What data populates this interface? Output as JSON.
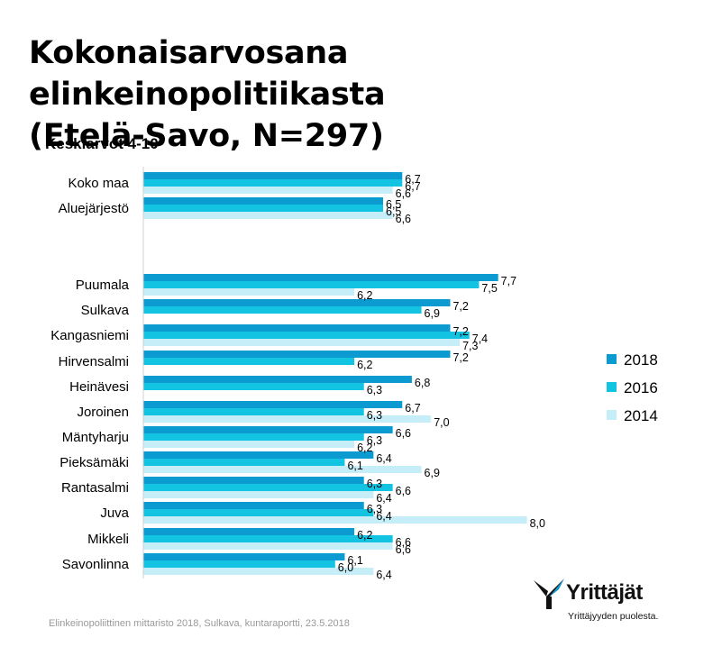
{
  "title_line1": "Kokonaisarvosana elinkeinopolitiikasta",
  "title_line2": "(Etelä-Savo, N=297)",
  "subtitle": "Keskiarvot 4-10",
  "footer": "Elinkeinopoliittinen mittaristo 2018, Sulkava, kuntaraportti, 23.5.2018",
  "logo": {
    "name": "Yrittäjät",
    "slogan": "Yrittäjyyden puolesta."
  },
  "colors": {
    "s2018": "#0b9bd1",
    "s2016": "#13c4e2",
    "s2014": "#c5eef8",
    "axis": "#d0d0d0"
  },
  "chart_data": {
    "type": "bar",
    "orientation": "horizontal",
    "title": "Kokonaisarvosana elinkeinopolitiikasta (Etelä-Savo, N=297)",
    "subtitle": "Keskiarvot 4-10",
    "legend_position": "right",
    "grid": false,
    "xlim": [
      4,
      10
    ],
    "categories": [
      "Koko maa",
      "Aluejärjestö",
      "Puumala",
      "Sulkava",
      "Kangasniemi",
      "Hirvensalmi",
      "Heinävesi",
      "Joroinen",
      "Mäntyharju",
      "Pieksämäki",
      "Rantasalmi",
      "Juva",
      "Mikkeli",
      "Savonlinna"
    ],
    "series": [
      {
        "name": "2018",
        "values": [
          6.7,
          6.5,
          7.7,
          7.2,
          7.2,
          7.2,
          6.8,
          6.7,
          6.6,
          6.4,
          6.3,
          6.3,
          6.2,
          6.1
        ]
      },
      {
        "name": "2016",
        "values": [
          6.7,
          6.5,
          7.5,
          6.9,
          7.4,
          6.2,
          6.3,
          6.3,
          6.3,
          6.1,
          6.6,
          6.4,
          6.6,
          6.0
        ]
      },
      {
        "name": "2014",
        "values": [
          6.6,
          6.6,
          6.2,
          null,
          7.3,
          null,
          null,
          7.0,
          6.2,
          6.9,
          6.4,
          8.0,
          6.6,
          6.4
        ]
      }
    ],
    "value_labels": [
      [
        "6,7",
        "6,7",
        "6,6"
      ],
      [
        "6,5",
        "6,5",
        "6,6"
      ],
      [
        "7,7",
        "7,5",
        "6,2"
      ],
      [
        "7,2",
        "6,9",
        ""
      ],
      [
        "7,2",
        "7,4",
        "7,3"
      ],
      [
        "7,2",
        "6,2",
        ""
      ],
      [
        "6,8",
        "6,3",
        ""
      ],
      [
        "6,7",
        "6,3",
        "7,0"
      ],
      [
        "6,6",
        "6,3",
        "6,2"
      ],
      [
        "6,4",
        "6,1",
        "6,9"
      ],
      [
        "6,3",
        "6,6",
        "6,4"
      ],
      [
        "6,3",
        "6,4",
        "8,0"
      ],
      [
        "6,2",
        "6,6",
        "6,6"
      ],
      [
        "6,1",
        "6,0",
        "6,4"
      ]
    ]
  }
}
